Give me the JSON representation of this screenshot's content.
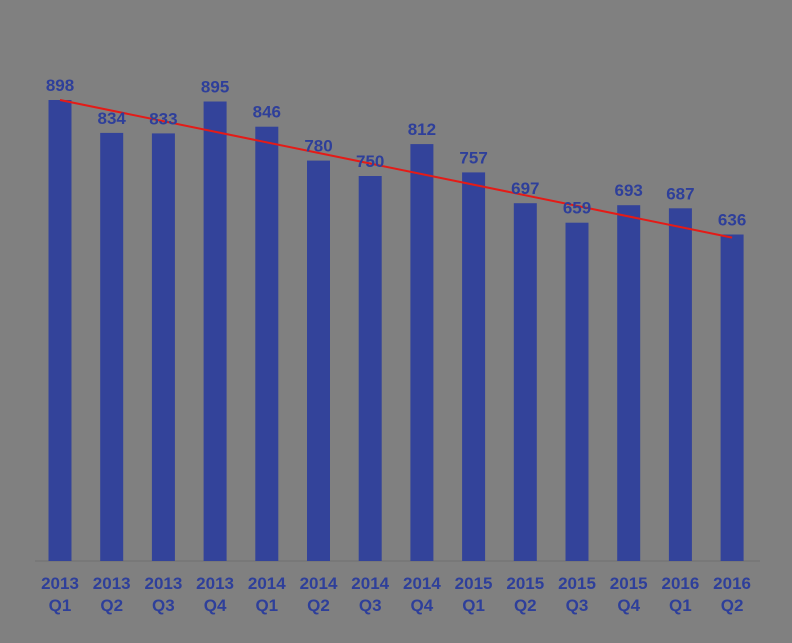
{
  "chart_data": {
    "type": "bar",
    "title": "",
    "xlabel": "",
    "ylabel": "",
    "ylim": [
      0,
      898
    ],
    "grid": false,
    "legend": "none",
    "categories": [
      [
        "2013",
        "Q1"
      ],
      [
        "2013",
        "Q2"
      ],
      [
        "2013",
        "Q3"
      ],
      [
        "2013",
        "Q4"
      ],
      [
        "2014",
        "Q1"
      ],
      [
        "2014",
        "Q2"
      ],
      [
        "2014",
        "Q3"
      ],
      [
        "2014",
        "Q4"
      ],
      [
        "2015",
        "Q1"
      ],
      [
        "2015",
        "Q2"
      ],
      [
        "2015",
        "Q3"
      ],
      [
        "2015",
        "Q4"
      ],
      [
        "2016",
        "Q1"
      ],
      [
        "2016",
        "Q2"
      ]
    ],
    "values": [
      898,
      834,
      833,
      895,
      846,
      780,
      750,
      812,
      757,
      697,
      659,
      693,
      687,
      636
    ],
    "data_labels": [
      "898",
      "834",
      "833",
      "895",
      "846",
      "780",
      "750",
      "812",
      "757",
      "697",
      "659",
      "693",
      "687",
      "636"
    ],
    "trendline": {
      "type": "linear",
      "start_value": 898,
      "end_value": 630
    },
    "colors": {
      "bar": "#33439A",
      "label": "#2E3F9A",
      "trend": "#E41B17",
      "background": "#808080"
    }
  }
}
